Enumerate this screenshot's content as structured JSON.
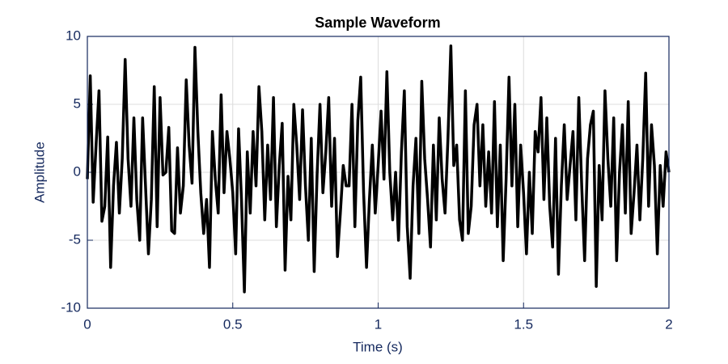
{
  "chart_data": {
    "type": "line",
    "title": "Sample Waveform",
    "xlabel": "Time (s)",
    "ylabel": "Amplitude",
    "x": [
      0,
      0.01,
      0.02,
      0.03,
      0.04,
      0.05,
      0.06,
      0.07,
      0.08,
      0.09,
      0.1,
      0.11,
      0.12,
      0.13,
      0.14,
      0.15,
      0.16,
      0.17,
      0.18,
      0.19,
      0.2,
      0.21,
      0.22,
      0.23,
      0.24,
      0.25,
      0.26,
      0.27,
      0.28,
      0.29,
      0.3,
      0.31,
      0.32,
      0.33,
      0.34,
      0.35,
      0.36,
      0.37,
      0.38,
      0.39,
      0.4,
      0.41,
      0.42,
      0.43,
      0.44,
      0.45,
      0.46,
      0.47,
      0.48,
      0.49,
      0.5,
      0.51,
      0.52,
      0.53,
      0.54,
      0.55,
      0.56,
      0.57,
      0.58,
      0.59,
      0.6,
      0.61,
      0.62,
      0.63,
      0.64,
      0.65,
      0.66,
      0.67,
      0.68,
      0.69,
      0.7,
      0.71,
      0.72,
      0.73,
      0.74,
      0.75,
      0.76,
      0.77,
      0.78,
      0.79,
      0.8,
      0.81,
      0.82,
      0.83,
      0.84,
      0.85,
      0.86,
      0.87,
      0.88,
      0.89,
      0.9,
      0.91,
      0.92,
      0.93,
      0.94,
      0.95,
      0.96,
      0.97,
      0.98,
      0.99,
      1,
      1.01,
      1.02,
      1.03,
      1.04,
      1.05,
      1.06,
      1.07,
      1.08,
      1.09,
      1.1,
      1.11,
      1.12,
      1.13,
      1.14,
      1.15,
      1.16,
      1.17,
      1.18,
      1.19,
      1.2,
      1.21,
      1.22,
      1.23,
      1.24,
      1.25,
      1.26,
      1.27,
      1.28,
      1.29,
      1.3,
      1.31,
      1.32,
      1.33,
      1.34,
      1.35,
      1.36,
      1.37,
      1.38,
      1.39,
      1.4,
      1.41,
      1.42,
      1.43,
      1.44,
      1.45,
      1.46,
      1.47,
      1.48,
      1.49,
      1.5,
      1.51,
      1.52,
      1.53,
      1.54,
      1.55,
      1.56,
      1.57,
      1.58,
      1.59,
      1.6,
      1.61,
      1.62,
      1.63,
      1.64,
      1.65,
      1.66,
      1.67,
      1.68,
      1.69,
      1.7,
      1.71,
      1.72,
      1.73,
      1.74,
      1.75,
      1.76,
      1.77,
      1.78,
      1.79,
      1.8,
      1.81,
      1.82,
      1.83,
      1.84,
      1.85,
      1.86,
      1.87,
      1.88,
      1.89,
      1.9,
      1.91,
      1.92,
      1.93,
      1.94,
      1.95,
      1.96,
      1.97,
      1.98,
      1.99,
      2
    ],
    "values": [
      -0.5,
      7.1,
      -2.2,
      2.0,
      6.0,
      -3.6,
      -2.5,
      2.6,
      -7.0,
      -1.0,
      2.2,
      -3.0,
      1.0,
      8.3,
      1.0,
      -2.5,
      4.0,
      -2.0,
      -5.0,
      4.0,
      -1.0,
      -6.0,
      -2.0,
      6.3,
      -4.0,
      5.5,
      -0.2,
      0.0,
      3.3,
      -4.3,
      -4.5,
      1.8,
      -3.0,
      -1.0,
      6.8,
      2.0,
      -0.8,
      9.2,
      3.0,
      -1.5,
      -4.5,
      -2.0,
      -7.0,
      3.0,
      -0.5,
      -3.0,
      5.7,
      -1.5,
      3.0,
      1.0,
      -1.5,
      -6.0,
      3.2,
      -2.0,
      -8.8,
      1.5,
      -3.0,
      3.0,
      -1.0,
      6.3,
      3.0,
      -3.5,
      2.0,
      -2.0,
      5.5,
      -4.0,
      0.5,
      3.6,
      -7.2,
      -0.3,
      -3.5,
      5.0,
      2.0,
      -2.0,
      4.6,
      -1.0,
      -5.0,
      2.5,
      -7.3,
      -0.2,
      5.0,
      -1.5,
      1.5,
      5.5,
      -2.5,
      2.5,
      -6.2,
      -3.0,
      0.5,
      -1.0,
      -1.0,
      5.0,
      -4.0,
      3.8,
      7.0,
      -1.5,
      -7.0,
      -2.0,
      2.0,
      -3.0,
      0.5,
      4.5,
      -0.5,
      7.4,
      0.0,
      -3.5,
      0.0,
      -5.0,
      1.5,
      6.0,
      -4.0,
      -7.8,
      -1.0,
      2.5,
      -4.5,
      6.7,
      1.0,
      -2.0,
      -5.5,
      2.0,
      -3.5,
      4.0,
      -0.5,
      -3.0,
      2.5,
      9.3,
      0.5,
      2.0,
      -3.5,
      -5.0,
      6.0,
      -4.5,
      -2.5,
      3.5,
      5.0,
      -1.0,
      3.5,
      -2.5,
      1.5,
      -3.0,
      5.2,
      -4.0,
      2.0,
      -6.5,
      -0.5,
      7.0,
      -1.0,
      5.0,
      -4.0,
      2.0,
      -1.5,
      -6.0,
      0.0,
      -4.5,
      3.0,
      1.5,
      5.5,
      -2.0,
      4.0,
      -2.5,
      -5.5,
      2.5,
      -7.5,
      -1.0,
      3.5,
      -2.0,
      0.5,
      3.0,
      -3.5,
      5.5,
      -1.0,
      -6.5,
      1.0,
      3.5,
      4.5,
      -8.4,
      0.5,
      -3.5,
      6.0,
      1.0,
      -2.5,
      4.0,
      -6.5,
      0.0,
      3.5,
      -3.0,
      5.2,
      -4.5,
      -1.5,
      2.0,
      -3.5,
      1.0,
      7.3,
      -2.5,
      3.5,
      0.5,
      -6.0,
      0.5,
      -2.5,
      1.5,
      0.0
    ],
    "color": "#000000",
    "xlim": [
      0,
      2
    ],
    "xticks": [
      0,
      0.5,
      1,
      1.5,
      2
    ],
    "ylim": [
      -10,
      10
    ],
    "yticks": [
      -10,
      -5,
      0,
      5,
      10
    ],
    "grid": true
  }
}
